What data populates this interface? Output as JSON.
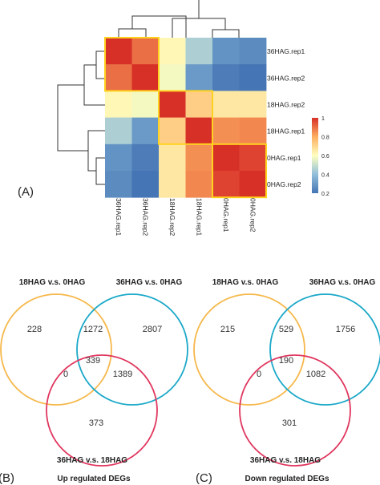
{
  "panel_labels": {
    "a": "(A)",
    "b": "(B)",
    "c": "(C)"
  },
  "chart_data": [
    {
      "type": "heatmap",
      "rows": [
        "36HAG.rep1",
        "36HAG.rep2",
        "18HAG.rep2",
        "18HAG.rep1",
        "0HAG.rep1",
        "0HAG.rep2"
      ],
      "columns": [
        "36HAG.rep1",
        "36HAG.rep2",
        "18HAG.rep2",
        "18HAG.rep1",
        "0HAG.rep1",
        "0HAG.rep2"
      ],
      "values": [
        [
          1.0,
          0.9,
          0.62,
          0.45,
          0.28,
          0.26
        ],
        [
          0.9,
          1.0,
          0.58,
          0.3,
          0.22,
          0.2
        ],
        [
          0.62,
          0.58,
          1.0,
          0.72,
          0.66,
          0.66
        ],
        [
          0.45,
          0.3,
          0.72,
          1.0,
          0.85,
          0.86
        ],
        [
          0.28,
          0.22,
          0.66,
          0.85,
          1.0,
          0.97
        ],
        [
          0.26,
          0.2,
          0.66,
          0.86,
          0.97,
          1.0
        ]
      ],
      "color_scale": {
        "ticks": [
          "1",
          "0.8",
          "0.6",
          "0.4",
          "0.2"
        ],
        "min": 0.2,
        "max": 1.0,
        "colors": [
          "#4575b4",
          "#91bfdb",
          "#ffffbf",
          "#fdae61",
          "#d73027"
        ]
      },
      "highlight_color": "#ffd21f",
      "highlight_groups": [
        [
          0,
          1
        ],
        [
          2,
          3
        ],
        [
          4,
          5
        ]
      ]
    },
    {
      "type": "venn",
      "sets": [
        {
          "name": "18HAG v.s. 0HAG",
          "color": "#f6b84a"
        },
        {
          "name": "36HAG v.s. 0HAG",
          "color": "#1aa8c8"
        },
        {
          "name": "36HAG v.s. 18HAG",
          "color": "#e0365e"
        }
      ],
      "regions": {
        "only_a": "228",
        "only_b": "2807",
        "only_c": "373",
        "ab": "1272",
        "ac": "0",
        "bc": "1389",
        "abc": "339"
      },
      "caption": "Up regulated DEGs"
    },
    {
      "type": "venn",
      "sets": [
        {
          "name": "18HAG v.s. 0HAG",
          "color": "#f6b84a"
        },
        {
          "name": "36HAG v.s. 0HAG",
          "color": "#1aa8c8"
        },
        {
          "name": "36HAG v.s. 18HAG",
          "color": "#e0365e"
        }
      ],
      "regions": {
        "only_a": "215",
        "only_b": "1756",
        "only_c": "301",
        "ab": "529",
        "ac": "0",
        "bc": "1082",
        "abc": "190"
      },
      "caption": "Down regulated DEGs"
    }
  ]
}
